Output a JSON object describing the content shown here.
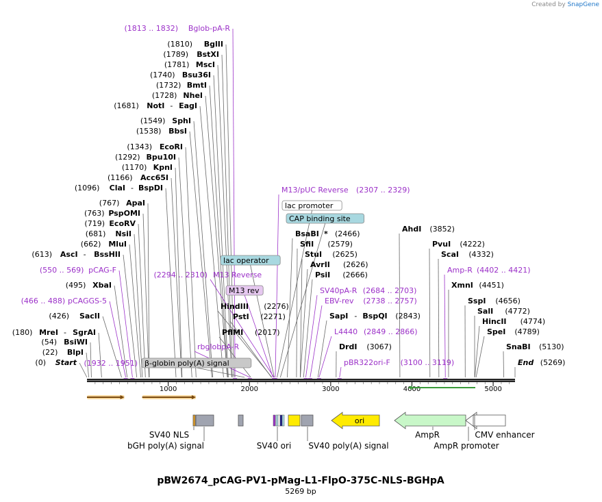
{
  "header": {
    "credit_prefix": "Created by",
    "credit_brand": "SnapGene"
  },
  "plasmid": {
    "name": "pBW2674_pCAG-PV1-pMag-L1-FlpO-375C-NLS-BGHpA",
    "size_label": "5269 bp",
    "length": 5269
  },
  "colors": {
    "enzyme": "#000000",
    "primer": "#9b30c8",
    "purple_line": "#9b30c8",
    "leader": "#666666"
  },
  "ruler": {
    "ticks": [
      1000,
      2000,
      3000,
      4000,
      5000
    ]
  },
  "sites": [
    {
      "name": "Start",
      "kind": "end",
      "pos": 0,
      "label": "(0)",
      "loc": "(0)",
      "italic": true
    },
    {
      "name": "BlpI",
      "kind": "enzyme",
      "pos": 22,
      "loc": "(22)"
    },
    {
      "name": "BsiWI",
      "kind": "enzyme",
      "pos": 54,
      "loc": "(54)"
    },
    {
      "name": "MreI",
      "name2": "SgrAI",
      "kind": "enzyme",
      "pos": 180,
      "loc": "(180)"
    },
    {
      "name": "SacII",
      "kind": "enzyme",
      "pos": 426,
      "loc": "(426)"
    },
    {
      "name": "pCAGGS-5",
      "kind": "primer",
      "pos": 477,
      "loc": "(466 .. 488)"
    },
    {
      "name": "XbaI",
      "kind": "enzyme",
      "pos": 495,
      "loc": "(495)"
    },
    {
      "name": "pCAG-F",
      "kind": "primer",
      "pos": 560,
      "loc": "(550 .. 569)"
    },
    {
      "name": "AscI",
      "name2": "BssHII",
      "kind": "enzyme",
      "pos": 613,
      "loc": "(613)"
    },
    {
      "name": "MluI",
      "kind": "enzyme",
      "pos": 662,
      "loc": "(662)"
    },
    {
      "name": "NsiI",
      "kind": "enzyme",
      "pos": 681,
      "loc": "(681)"
    },
    {
      "name": "EcoRV",
      "kind": "enzyme",
      "pos": 719,
      "loc": "(719)"
    },
    {
      "name": "PspOMI",
      "kind": "enzyme",
      "pos": 763,
      "loc": "(763)"
    },
    {
      "name": "ApaI",
      "kind": "enzyme",
      "pos": 767,
      "loc": "(767)"
    },
    {
      "name": "ClaI",
      "name2": "BspDI",
      "kind": "enzyme",
      "pos": 1096,
      "loc": "(1096)"
    },
    {
      "name": "Acc65I",
      "kind": "enzyme",
      "pos": 1166,
      "loc": "(1166)"
    },
    {
      "name": "KpnI",
      "kind": "enzyme",
      "pos": 1170,
      "loc": "(1170)"
    },
    {
      "name": "Bpu10I",
      "kind": "enzyme",
      "pos": 1292,
      "loc": "(1292)"
    },
    {
      "name": "EcoRI",
      "kind": "enzyme",
      "pos": 1343,
      "loc": "(1343)"
    },
    {
      "name": "BbsI",
      "kind": "enzyme",
      "pos": 1538,
      "loc": "(1538)"
    },
    {
      "name": "SphI",
      "kind": "enzyme",
      "pos": 1549,
      "loc": "(1549)"
    },
    {
      "name": "NotI",
      "name2": "EagI",
      "kind": "enzyme",
      "pos": 1681,
      "loc": "(1681)"
    },
    {
      "name": "NheI",
      "kind": "enzyme",
      "pos": 1728,
      "loc": "(1728)"
    },
    {
      "name": "BmtI",
      "kind": "enzyme",
      "pos": 1732,
      "loc": "(1732)"
    },
    {
      "name": "Bsu36I",
      "kind": "enzyme",
      "pos": 1740,
      "loc": "(1740)"
    },
    {
      "name": "MscI",
      "kind": "enzyme",
      "pos": 1781,
      "loc": "(1781)"
    },
    {
      "name": "BstXI",
      "kind": "enzyme",
      "pos": 1789,
      "loc": "(1789)"
    },
    {
      "name": "BglII",
      "kind": "enzyme",
      "pos": 1810,
      "loc": "(1810)"
    },
    {
      "name": "Bglob-pA-R",
      "kind": "primer",
      "pos": 1822,
      "loc": "(1813 .. 1832)",
      "locFirst": true
    },
    {
      "name": "β-globin poly(A) signal",
      "kind": "box",
      "pos": 1941,
      "loc": "(1932 .. 1951)",
      "box": "gray"
    },
    {
      "name": "PflMI",
      "kind": "enzyme",
      "pos": 2017,
      "loc": "(2017)"
    },
    {
      "name": "rbglobpA-R",
      "kind": "primer",
      "pos": 2005
    },
    {
      "name": "PstI",
      "kind": "enzyme",
      "pos": 2271,
      "loc": "(2271)"
    },
    {
      "name": "HindIII",
      "kind": "enzyme",
      "pos": 2276,
      "loc": "(2276)"
    },
    {
      "name": "M13 rev",
      "kind": "box",
      "pos": 2290,
      "box": "purple"
    },
    {
      "name": "M13 Reverse",
      "kind": "primer",
      "pos": 2302,
      "loc": "(2294 .. 2310)",
      "locFirst": true
    },
    {
      "name": "lac operator",
      "kind": "box",
      "pos": 2305,
      "box": "teal"
    },
    {
      "name": "M13/pUC Reverse",
      "kind": "primer",
      "pos": 2318,
      "loc": "(2307 .. 2329)"
    },
    {
      "name": "lac promoter",
      "kind": "box",
      "pos": 2340,
      "box": "white"
    },
    {
      "name": "CAP binding site",
      "kind": "box",
      "pos": 2380,
      "box": "teal"
    },
    {
      "name": "BsaBI",
      "star": "*",
      "kind": "enzyme",
      "pos": 2466,
      "loc": "(2466)"
    },
    {
      "name": "SfiI",
      "kind": "enzyme",
      "pos": 2579,
      "loc": "(2579)"
    },
    {
      "name": "StuI",
      "kind": "enzyme",
      "pos": 2625,
      "loc": "(2625)"
    },
    {
      "name": "AvrII",
      "kind": "enzyme",
      "pos": 2626,
      "loc": "(2626)"
    },
    {
      "name": "PsiI",
      "kind": "enzyme",
      "pos": 2666,
      "loc": "(2666)"
    },
    {
      "name": "SV40pA-R",
      "kind": "primer",
      "pos": 2693,
      "loc": "(2684 .. 2703)"
    },
    {
      "name": "EBV-rev",
      "kind": "primer",
      "pos": 2747,
      "loc": "(2738 .. 2757)"
    },
    {
      "name": "SapI",
      "name2": "BspQI",
      "kind": "enzyme",
      "pos": 2843,
      "loc": "(2843)"
    },
    {
      "name": "L4440",
      "kind": "primer",
      "pos": 2857,
      "loc": "(2849 .. 2866)"
    },
    {
      "name": "DrdI",
      "kind": "enzyme",
      "pos": 3067,
      "loc": "(3067)"
    },
    {
      "name": "pBR322ori-F",
      "kind": "primer",
      "pos": 3109,
      "loc": "(3100 .. 3119)"
    },
    {
      "name": "AhdI",
      "kind": "enzyme",
      "pos": 3852,
      "loc": "(3852)"
    },
    {
      "name": "PvuI",
      "kind": "enzyme",
      "pos": 4222,
      "loc": "(4222)"
    },
    {
      "name": "ScaI",
      "kind": "enzyme",
      "pos": 4332,
      "loc": "(4332)"
    },
    {
      "name": "Amp-R",
      "kind": "primer",
      "pos": 4411,
      "loc": "(4402 .. 4421)"
    },
    {
      "name": "XmnI",
      "kind": "enzyme",
      "pos": 4451,
      "loc": "(4451)"
    },
    {
      "name": "SspI",
      "kind": "enzyme",
      "pos": 4656,
      "loc": "(4656)"
    },
    {
      "name": "SalI",
      "kind": "enzyme",
      "pos": 4772,
      "loc": "(4772)"
    },
    {
      "name": "HincII",
      "kind": "enzyme",
      "pos": 4774,
      "loc": "(4774)"
    },
    {
      "name": "SpeI",
      "kind": "enzyme",
      "pos": 4789,
      "loc": "(4789)"
    },
    {
      "name": "SnaBI",
      "kind": "enzyme",
      "pos": 5130,
      "loc": "(5130)"
    },
    {
      "name": "End",
      "kind": "end",
      "pos": 5269,
      "loc": "(5269)",
      "italic": true
    }
  ],
  "features": [
    {
      "name": "SV40 NLS",
      "start": 1330,
      "end": 1345,
      "color": "#e8a020"
    },
    {
      "name": "bGH poly(A) signal",
      "start": 1340,
      "end": 1560,
      "color": "#a0a4b0"
    },
    {
      "name": "",
      "start": 1870,
      "end": 1930,
      "color": "#a0a4b0"
    },
    {
      "name": "SV40 ori",
      "start": 2290,
      "end": 2430,
      "color": "#ffeb00"
    },
    {
      "name": "SV40 poly(A) signal",
      "start": 2610,
      "end": 2760,
      "color": "#a0a4b0"
    },
    {
      "name": "ori",
      "start": 3030,
      "end": 3620,
      "color": "#ffeb00"
    },
    {
      "name": "AmpR",
      "start": 3930,
      "end": 4780,
      "color": "#c8f7c8"
    },
    {
      "name": "AmpR promoter",
      "start": 4780,
      "end": 4880,
      "color": "#ffffff"
    },
    {
      "name": "CMV enhancer",
      "start": 4880,
      "end": 5269,
      "color": "#ffffff"
    }
  ],
  "orfs": [
    {
      "start": 0,
      "end": 460,
      "color": "#e8a020"
    },
    {
      "start": 680,
      "end": 1340,
      "color": "#e8a020"
    },
    {
      "start": 3950,
      "end": 4780,
      "color": "#3a9a3a"
    }
  ]
}
